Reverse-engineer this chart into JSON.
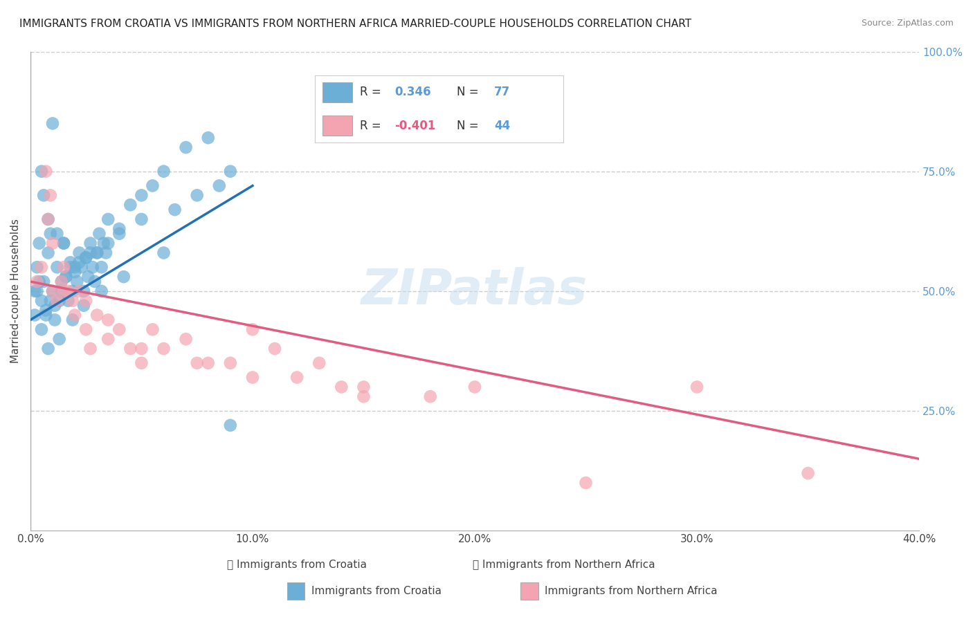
{
  "title": "IMMIGRANTS FROM CROATIA VS IMMIGRANTS FROM NORTHERN AFRICA MARRIED-COUPLE HOUSEHOLDS CORRELATION CHART",
  "source": "Source: ZipAtlas.com",
  "ylabel": "Married-couple Households",
  "xlabel": "",
  "xlim": [
    0.0,
    40.0
  ],
  "ylim": [
    0.0,
    100.0
  ],
  "xticks": [
    0.0,
    10.0,
    20.0,
    30.0,
    40.0
  ],
  "yticks": [
    25.0,
    50.0,
    75.0,
    100.0
  ],
  "xticklabels": [
    "0.0%",
    "10.0%",
    "20.0%",
    "30.0%",
    "40.0%"
  ],
  "yticklabels": [
    "25.0%",
    "50.0%",
    "75.0%",
    "100.0%"
  ],
  "series": [
    {
      "name": "Immigrants from Croatia",
      "R": 0.346,
      "N": 77,
      "color": "#6baed6",
      "line_color": "#2171b5",
      "x": [
        0.2,
        0.3,
        0.4,
        0.5,
        0.6,
        0.7,
        0.8,
        0.9,
        1.0,
        1.1,
        1.2,
        1.3,
        1.4,
        1.5,
        1.6,
        1.7,
        1.8,
        1.9,
        2.0,
        2.1,
        2.2,
        2.3,
        2.4,
        2.5,
        2.6,
        2.7,
        2.8,
        2.9,
        3.0,
        3.1,
        3.2,
        3.3,
        3.4,
        3.5,
        4.0,
        4.5,
        5.0,
        5.5,
        6.0,
        7.0,
        8.0,
        1.0,
        0.5,
        0.6,
        0.8,
        1.2,
        1.5,
        2.0,
        2.5,
        3.0,
        0.3,
        0.4,
        0.7,
        0.9,
        1.1,
        1.4,
        1.6,
        1.8,
        2.2,
        2.7,
        3.5,
        4.0,
        5.0,
        6.5,
        7.5,
        8.5,
        9.0,
        0.2,
        0.5,
        0.8,
        1.3,
        1.9,
        2.4,
        3.2,
        4.2,
        6.0,
        9.0
      ],
      "y": [
        50.0,
        55.0,
        60.0,
        48.0,
        52.0,
        45.0,
        58.0,
        62.0,
        50.0,
        47.0,
        55.0,
        48.0,
        52.0,
        60.0,
        53.0,
        48.0,
        56.0,
        50.0,
        54.0,
        52.0,
        58.0,
        55.0,
        50.0,
        57.0,
        53.0,
        60.0,
        55.0,
        52.0,
        58.0,
        62.0,
        55.0,
        60.0,
        58.0,
        65.0,
        63.0,
        68.0,
        70.0,
        72.0,
        75.0,
        80.0,
        82.0,
        85.0,
        75.0,
        70.0,
        65.0,
        62.0,
        60.0,
        55.0,
        57.0,
        58.0,
        50.0,
        52.0,
        46.0,
        48.0,
        44.0,
        50.0,
        53.0,
        55.0,
        56.0,
        58.0,
        60.0,
        62.0,
        65.0,
        67.0,
        70.0,
        72.0,
        75.0,
        45.0,
        42.0,
        38.0,
        40.0,
        44.0,
        47.0,
        50.0,
        53.0,
        58.0,
        22.0
      ],
      "trend_x": [
        0.0,
        10.0
      ],
      "trend_y": [
        44.0,
        72.0
      ]
    },
    {
      "name": "Immigrants from Northern Africa",
      "R": -0.401,
      "N": 44,
      "color": "#f4a4b0",
      "line_color": "#e05c80",
      "x": [
        0.3,
        0.5,
        0.7,
        0.9,
        1.0,
        1.2,
        1.4,
        1.5,
        1.7,
        1.9,
        2.0,
        2.2,
        2.5,
        2.7,
        3.0,
        3.5,
        4.0,
        4.5,
        5.0,
        5.5,
        6.0,
        7.0,
        8.0,
        9.0,
        10.0,
        11.0,
        12.0,
        13.0,
        14.0,
        15.0,
        18.0,
        20.0,
        25.0,
        30.0,
        1.0,
        0.8,
        1.5,
        2.5,
        3.5,
        5.0,
        7.5,
        10.0,
        15.0,
        35.0
      ],
      "y": [
        52.0,
        55.0,
        75.0,
        70.0,
        50.0,
        48.0,
        52.0,
        55.0,
        50.0,
        48.0,
        45.0,
        50.0,
        42.0,
        38.0,
        45.0,
        40.0,
        42.0,
        38.0,
        35.0,
        42.0,
        38.0,
        40.0,
        35.0,
        35.0,
        42.0,
        38.0,
        32.0,
        35.0,
        30.0,
        30.0,
        28.0,
        30.0,
        10.0,
        30.0,
        60.0,
        65.0,
        50.0,
        48.0,
        44.0,
        38.0,
        35.0,
        32.0,
        28.0,
        12.0
      ],
      "trend_x": [
        0.0,
        40.0
      ],
      "trend_y": [
        52.0,
        15.0
      ]
    }
  ],
  "watermark": "ZIPatlas",
  "background_color": "#ffffff",
  "grid_color": "#cccccc",
  "title_fontsize": 11,
  "axis_fontsize": 11,
  "tick_fontsize": 11,
  "legend_fontsize": 13
}
